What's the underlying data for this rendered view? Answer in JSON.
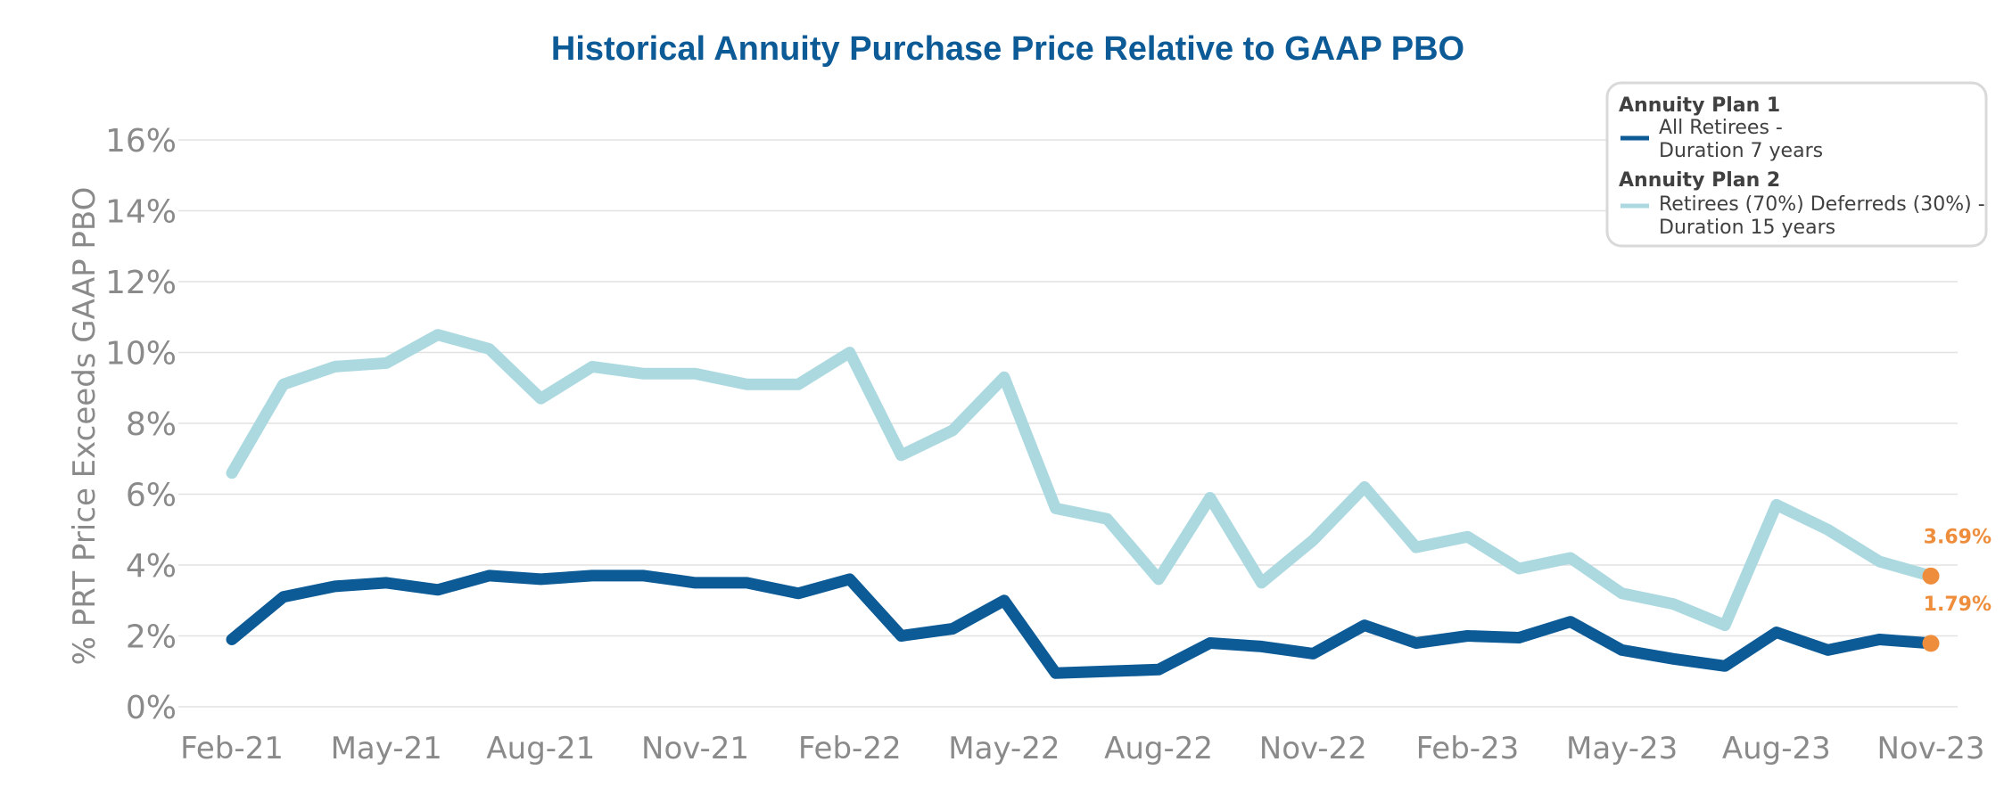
{
  "chart_data": {
    "type": "line",
    "title": "Historical Annuity Purchase Price Relative to GAAP PBO",
    "ylabel": "% PRT Price Exceeds GAAP PBO",
    "xlabel": "",
    "ylim": [
      0,
      16
    ],
    "yticks": [
      0,
      2,
      4,
      6,
      8,
      10,
      12,
      14,
      16
    ],
    "ytick_labels": [
      "0%",
      "2%",
      "4%",
      "6%",
      "8%",
      "10%",
      "12%",
      "14%",
      "16%"
    ],
    "x_start_month": "Feb-21",
    "n_points": 34,
    "xtick_labels": [
      "Feb-21",
      "May-21",
      "Aug-21",
      "Nov-21",
      "Feb-22",
      "May-22",
      "Aug-22",
      "Nov-22",
      "Feb-23",
      "May-23",
      "Aug-23",
      "Nov-23"
    ],
    "grid": true,
    "series": [
      {
        "name": "Annuity Plan 2",
        "color": "#acd9e0",
        "values": [
          6.6,
          9.1,
          9.6,
          9.7,
          10.5,
          10.1,
          8.7,
          9.6,
          9.4,
          9.4,
          9.1,
          9.1,
          10.0,
          7.1,
          7.8,
          9.3,
          5.6,
          5.3,
          3.6,
          5.9,
          3.5,
          4.7,
          6.2,
          4.5,
          4.8,
          3.9,
          4.2,
          3.2,
          2.9,
          2.3,
          5.7,
          5.0,
          4.1,
          3.69
        ]
      },
      {
        "name": "Annuity Plan 1",
        "color": "#0c5a96",
        "values": [
          1.9,
          3.1,
          3.4,
          3.5,
          3.3,
          3.7,
          3.6,
          3.7,
          3.7,
          3.5,
          3.5,
          3.2,
          3.6,
          2.0,
          2.2,
          3.0,
          0.95,
          1.0,
          1.05,
          1.8,
          1.7,
          1.5,
          2.3,
          1.8,
          2.0,
          1.95,
          2.4,
          1.6,
          1.35,
          1.15,
          2.1,
          1.6,
          1.9,
          1.79
        ]
      }
    ],
    "end_labels": [
      {
        "series": "Annuity Plan 2",
        "text": "3.69%",
        "color": "#ee8e3c"
      },
      {
        "series": "Annuity Plan 1",
        "text": "1.79%",
        "color": "#ee8e3c"
      }
    ],
    "legend": {
      "position": "top-right",
      "groups": [
        {
          "heading": "Annuity Plan 1",
          "line1": "All Retirees -",
          "line2": "Duration 7 years",
          "color": "#0c5a96"
        },
        {
          "heading": "Annuity Plan 2",
          "line1": "Retirees (70%) Deferreds (30%) -",
          "line2": "Duration 15 years",
          "color": "#acd9e0"
        }
      ]
    }
  }
}
